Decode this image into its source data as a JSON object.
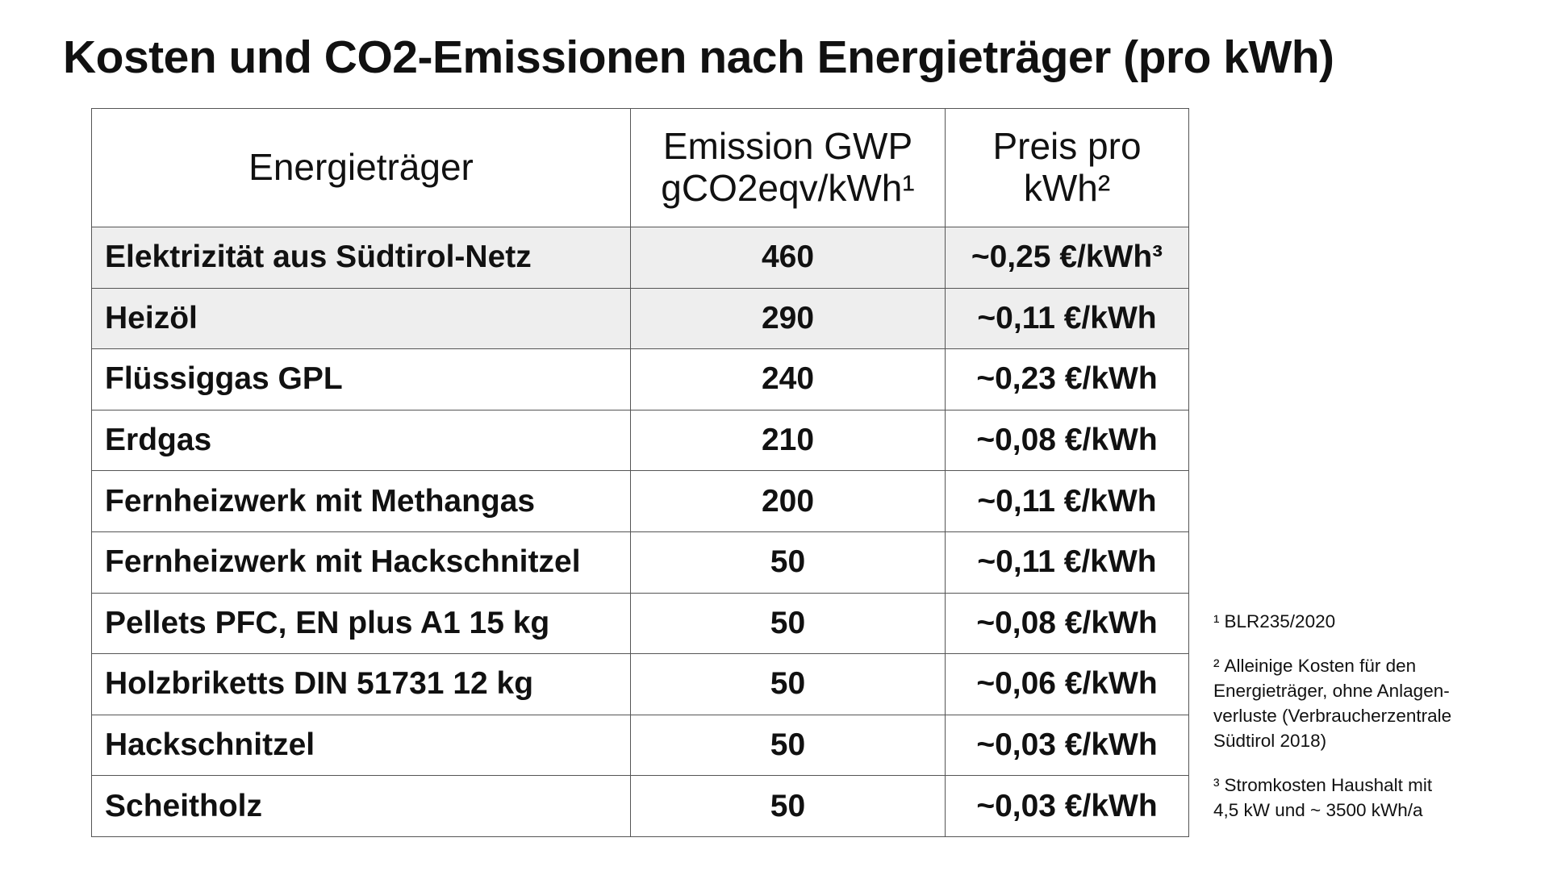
{
  "title": "Kosten und CO2-Emissionen nach Energieträger (pro kWh)",
  "table": {
    "headers": {
      "carrier": "Energieträger",
      "emission_line1": "Emission GWP",
      "emission_line2": "gCO2eqv/kWh",
      "emission_mark": "1",
      "price_line1": "Preis pro",
      "price_line2": "kWh",
      "price_mark": "2"
    },
    "rows": [
      {
        "name": "Elektrizität aus Südtirol-Netz",
        "emission": "460",
        "price": "~0,25 €/kWh³",
        "shaded": true
      },
      {
        "name": "Heizöl",
        "emission": "290",
        "price": "~0,11 €/kWh",
        "shaded": true
      },
      {
        "name": "Flüssiggas GPL",
        "emission": "240",
        "price": "~0,23 €/kWh",
        "shaded": false
      },
      {
        "name": "Erdgas",
        "emission": "210",
        "price": "~0,08 €/kWh",
        "shaded": false
      },
      {
        "name": "Fernheizwerk mit Methangas",
        "emission": "200",
        "price": "~0,11 €/kWh",
        "shaded": false
      },
      {
        "name": "Fernheizwerk mit Hackschnitzel",
        "emission": "50",
        "price": "~0,11 €/kWh",
        "shaded": false
      },
      {
        "name": "Pellets PFC, EN plus A1 15 kg",
        "emission": "50",
        "price": "~0,08 €/kWh",
        "shaded": false
      },
      {
        "name": "Holzbriketts DIN 51731 12 kg",
        "emission": "50",
        "price": "~0,06 €/kWh",
        "shaded": false
      },
      {
        "name": "Hackschnitzel",
        "emission": "50",
        "price": "~0,03 €/kWh",
        "shaded": false
      },
      {
        "name": "Scheitholz",
        "emission": "50",
        "price": "~0,03 €/kWh",
        "shaded": false
      }
    ]
  },
  "footnotes": [
    {
      "mark": "1",
      "lines": [
        "BLR235/2020"
      ]
    },
    {
      "mark": "2",
      "lines": [
        "Alleinige Kosten für den",
        "Energieträger, ohne Anlagen-",
        "verluste (Verbraucherzentrale",
        "Südtirol 2018)"
      ]
    },
    {
      "mark": "3",
      "lines": [
        "Stromkosten Haushalt mit",
        "4,5 kW und ~ 3500 kWh/a"
      ]
    }
  ],
  "colors": {
    "shaded_row": "#eeeeee",
    "border": "#555555",
    "text": "#111111"
  }
}
